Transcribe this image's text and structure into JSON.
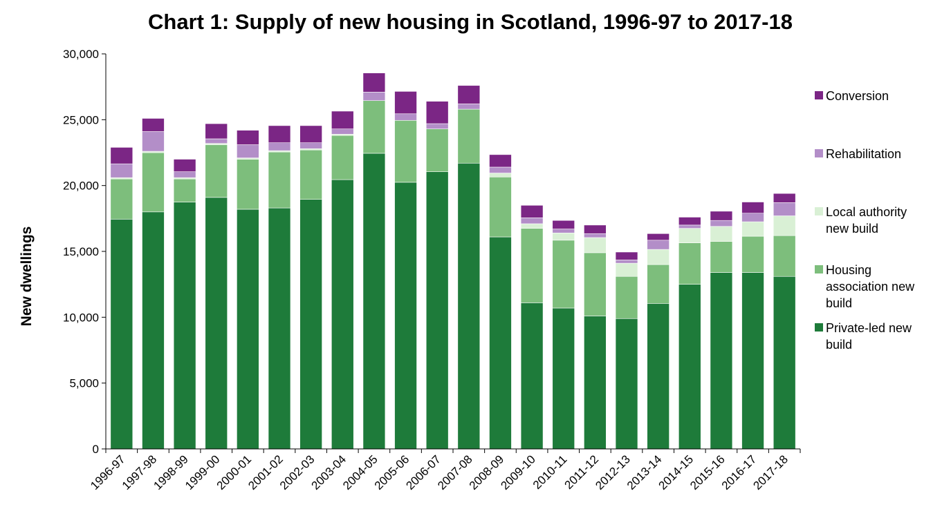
{
  "chart_data": {
    "type": "bar",
    "stacked": true,
    "title": "Chart 1: Supply of new housing in Scotland, 1996-97 to 2017-18",
    "ylabel": "New dwellings",
    "xlabel": "",
    "ylim": [
      0,
      30000
    ],
    "yticks": [
      0,
      5000,
      10000,
      15000,
      20000,
      25000,
      30000
    ],
    "ytick_labels": [
      "0",
      "5,000",
      "10,000",
      "15,000",
      "20,000",
      "25,000",
      "30,000"
    ],
    "grid": false,
    "legend_position": "right",
    "categories": [
      "1996-97",
      "1997-98",
      "1998-99",
      "1999-00",
      "2000-01",
      "2001-02",
      "2002-03",
      "2003-04",
      "2004-05",
      "2005-06",
      "2006-07",
      "2007-08",
      "2008-09",
      "2009-10",
      "2010-11",
      "2011-12",
      "2012-13",
      "2013-14",
      "2014-15",
      "2015-16",
      "2016-17",
      "2017-18"
    ],
    "series": [
      {
        "name": "Private-led new build",
        "color": "#1e7b3a",
        "values": [
          17450,
          18000,
          18750,
          19100,
          18200,
          18300,
          18950,
          20450,
          22450,
          20250,
          21050,
          21700,
          16100,
          11100,
          10700,
          10100,
          9900,
          11050,
          12500,
          13400,
          13400,
          13100
        ]
      },
      {
        "name": "Housing association new build",
        "color": "#7dbe7c",
        "values": [
          3050,
          4500,
          1750,
          4000,
          3800,
          4250,
          3750,
          3350,
          4000,
          4700,
          3250,
          4100,
          4550,
          5650,
          5150,
          4800,
          3200,
          2950,
          3150,
          2350,
          2750,
          3100
        ]
      },
      {
        "name": "Local authority new build",
        "color": "#d9f0d5",
        "values": [
          100,
          100,
          100,
          100,
          100,
          100,
          100,
          100,
          0,
          0,
          0,
          0,
          300,
          350,
          550,
          1150,
          1000,
          1150,
          1100,
          1150,
          1100,
          1500
        ]
      },
      {
        "name": "Rehabilitation",
        "color": "#b38ec8",
        "values": [
          1050,
          1500,
          450,
          350,
          1000,
          600,
          450,
          400,
          650,
          500,
          400,
          400,
          450,
          450,
          300,
          300,
          250,
          700,
          250,
          450,
          650,
          1000
        ]
      },
      {
        "name": "Conversion",
        "color": "#7b2685",
        "values": [
          1250,
          1000,
          950,
          1150,
          1100,
          1300,
          1300,
          1350,
          1450,
          1700,
          1700,
          1400,
          950,
          950,
          650,
          650,
          600,
          500,
          600,
          700,
          850,
          700
        ]
      }
    ],
    "legend_order": [
      "Conversion",
      "Rehabilitation",
      "Local authority new build",
      "Housing association new build",
      "Private-led new build"
    ],
    "legend_lines": {
      "Conversion": [
        "Conversion"
      ],
      "Rehabilitation": [
        "Rehabilitation"
      ],
      "Local authority new build": [
        "Local authority",
        "new build"
      ],
      "Housing association new build": [
        "Housing",
        "association new",
        "build"
      ],
      "Private-led new build": [
        "Private-led new",
        "build"
      ]
    }
  }
}
